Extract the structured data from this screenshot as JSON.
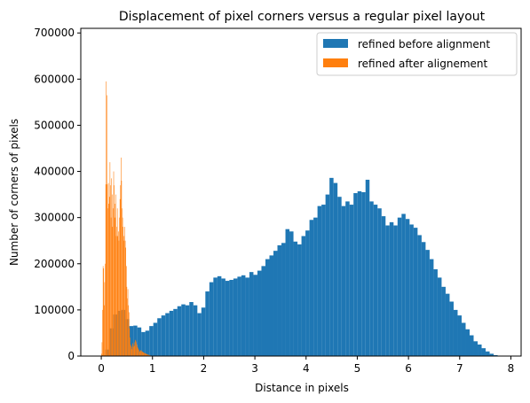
{
  "chart_data": {
    "type": "bar",
    "title": "Displacement of pixel corners versus a regular pixel layout",
    "xlabel": "Distance in pixels",
    "ylabel": "Number of corners of pixels",
    "xlim": [
      -0.4,
      8.2
    ],
    "ylim": [
      0,
      710000
    ],
    "xticks": [
      0,
      1,
      2,
      3,
      4,
      5,
      6,
      7,
      8
    ],
    "xtick_labels": [
      "0",
      "1",
      "2",
      "3",
      "4",
      "5",
      "6",
      "7",
      "8"
    ],
    "yticks": [
      0,
      100000,
      200000,
      300000,
      400000,
      500000,
      600000,
      700000
    ],
    "ytick_labels": [
      "0",
      "100000",
      "200000",
      "300000",
      "400000",
      "500000",
      "600000",
      "700000"
    ],
    "legend_position": "top-right",
    "series": [
      {
        "name": "refined before alignment",
        "color": "#1f77b4",
        "bin_start": 0,
        "bin_width": 0.0782,
        "values": [
          2000,
          14000,
          60000,
          90000,
          98000,
          100000,
          80000,
          65000,
          66000,
          62000,
          52000,
          55000,
          65000,
          72000,
          82000,
          88000,
          93000,
          98000,
          102000,
          108000,
          112000,
          110000,
          117000,
          110000,
          93000,
          105000,
          140000,
          160000,
          170000,
          173000,
          168000,
          163000,
          165000,
          168000,
          172000,
          175000,
          170000,
          182000,
          176000,
          185000,
          195000,
          210000,
          218000,
          228000,
          240000,
          245000,
          275000,
          270000,
          248000,
          242000,
          260000,
          272000,
          295000,
          300000,
          325000,
          328000,
          350000,
          386000,
          375000,
          345000,
          325000,
          335000,
          328000,
          353000,
          357000,
          355000,
          382000,
          335000,
          328000,
          320000,
          303000,
          283000,
          290000,
          283000,
          300000,
          308000,
          297000,
          285000,
          278000,
          262000,
          247000,
          230000,
          210000,
          188000,
          170000,
          150000,
          135000,
          118000,
          100000,
          88000,
          72000,
          58000,
          45000,
          32000,
          25000,
          17000,
          10000,
          5000,
          2000,
          500
        ]
      },
      {
        "name": "refined after alignement",
        "color": "#ff7f0e",
        "bin_start": 0,
        "bin_width": 0.0103,
        "values": [
          5000,
          30000,
          100000,
          195000,
          190000,
          110000,
          160000,
          200000,
          372000,
          595000,
          565000,
          372000,
          320000,
          375000,
          330000,
          345000,
          420000,
          370000,
          300000,
          385000,
          350000,
          280000,
          320000,
          400000,
          370000,
          300000,
          330000,
          350000,
          260000,
          280000,
          320000,
          260000,
          270000,
          250000,
          300000,
          340000,
          370000,
          430000,
          380000,
          320000,
          300000,
          280000,
          260000,
          250000,
          280000,
          250000,
          235000,
          195000,
          150000,
          125000,
          145000,
          110000,
          95000,
          60000,
          40000,
          25000,
          22000,
          15000,
          20000,
          28000,
          25000,
          20000,
          22000,
          30000,
          35000,
          33000,
          30000,
          25000,
          20000,
          18000,
          15000,
          13000,
          11000,
          9000,
          12000,
          13000,
          11000,
          10000,
          9000,
          8000,
          8000,
          7000,
          6000,
          6000,
          5000,
          5000,
          4000,
          4000,
          3000,
          3000,
          2000,
          2000,
          2000,
          1000,
          1000,
          1000,
          500,
          500,
          300,
          200
        ]
      }
    ]
  }
}
